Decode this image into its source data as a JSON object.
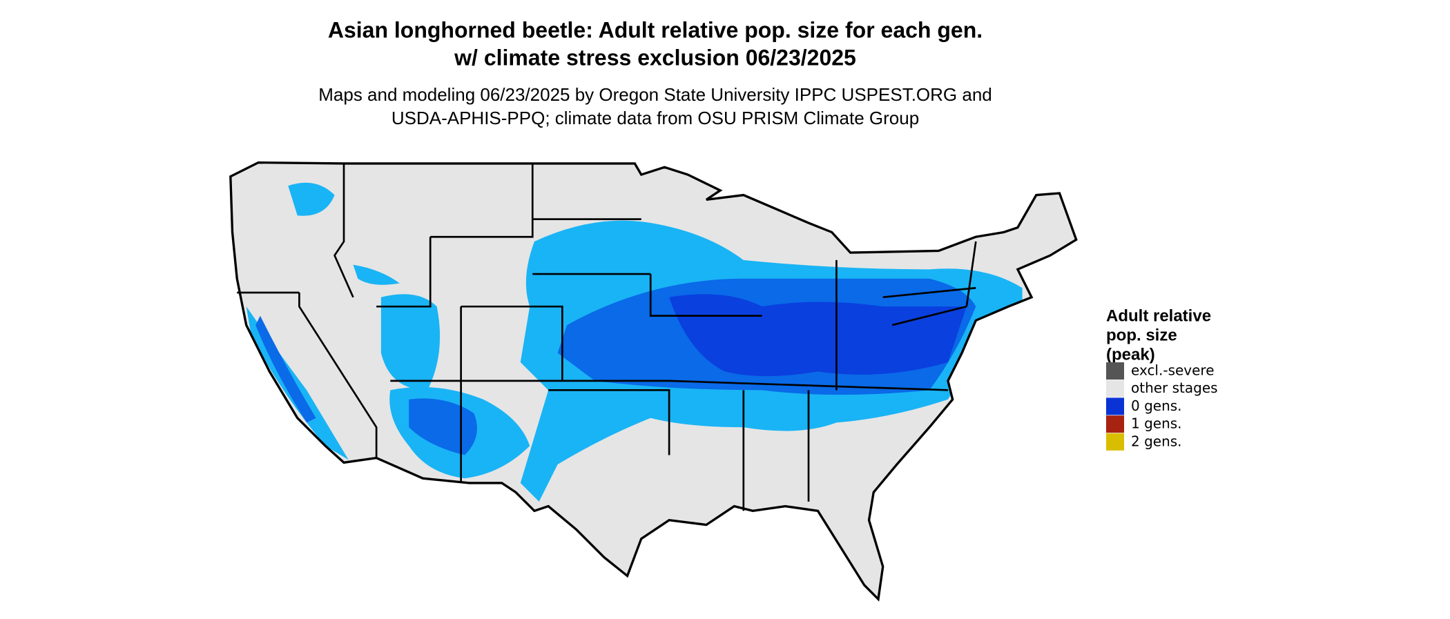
{
  "header": {
    "title_lines": [
      "Asian longhorned beetle: Adult relative pop. size for each gen.",
      "w/ climate stress exclusion 06/23/2025"
    ],
    "subtitle_lines": [
      "Maps and modeling 06/23/2025 by Oregon State University IPPC USPEST.ORG and",
      "USDA-APHIS-PPQ; climate data from OSU PRISM Climate Group"
    ]
  },
  "legend": {
    "title_lines": [
      "Adult relative",
      "pop. size",
      "(peak)"
    ],
    "items": [
      {
        "label": "excl.-severe",
        "color": "#555555"
      },
      {
        "label": "other stages",
        "color": "#e5e5e5"
      },
      {
        "label": "0 gens.",
        "color": "#0a33d6"
      },
      {
        "label": "1 gens.",
        "color": "#a82212"
      },
      {
        "label": "2 gens.",
        "color": "#d9bd00"
      }
    ]
  }
}
